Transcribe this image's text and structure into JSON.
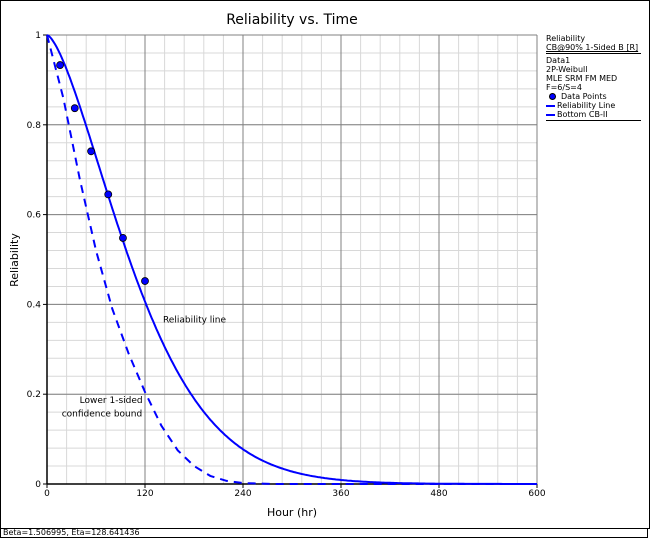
{
  "chart_data": {
    "type": "line",
    "title": "Reliability vs. Time",
    "xlabel": "Hour (hr)",
    "ylabel": "Reliability",
    "xlim": [
      0,
      600
    ],
    "ylim": [
      0,
      1
    ],
    "x_ticks": [
      "0",
      "120",
      "240",
      "360",
      "480",
      "600"
    ],
    "y_ticks": [
      "0",
      "0.2",
      "0.4",
      "0.6",
      "0.8",
      "1"
    ],
    "grid": true,
    "model": {
      "beta": 1.506995,
      "eta": 128.641436
    },
    "series": [
      {
        "name": "Data Points",
        "type": "scatter",
        "x": [
          16,
          34,
          54,
          75,
          93,
          120
        ],
        "y": [
          0.933,
          0.837,
          0.741,
          0.645,
          0.548,
          0.452
        ]
      },
      {
        "name": "Reliability Line",
        "type": "line",
        "style": "solid"
      },
      {
        "name": "Bottom CB-II",
        "type": "line",
        "style": "dashed",
        "x": [
          0,
          20,
          40,
          60,
          80,
          100,
          120,
          140,
          160,
          180,
          200,
          220,
          240,
          280
        ],
        "y": [
          1,
          0.86,
          0.68,
          0.52,
          0.39,
          0.29,
          0.205,
          0.13,
          0.075,
          0.04,
          0.018,
          0.007,
          0.002,
          0
        ]
      }
    ],
    "annotations": [
      {
        "text": "Reliability line",
        "x": 142,
        "y": 0.36
      },
      {
        "text": "Lower 1-sided",
        "x": 40,
        "y": 0.18
      },
      {
        "text": "confidence bound",
        "x": 18,
        "y": 0.15
      }
    ],
    "colors": {
      "series": "#0000ff",
      "grid_major": "#808080",
      "grid_minor": "#d8d8d8"
    }
  },
  "legend": {
    "header": "Reliability",
    "subheader": "CB@90% 1-Sided B [R]",
    "lines": [
      "Data1",
      "2P-Weibull",
      "MLE SRM FM MED",
      "F=6/S=4"
    ],
    "items": [
      "Data Points",
      "Reliability Line",
      "Bottom CB-II"
    ]
  },
  "status": "Beta=1.506995, Eta=128.641436"
}
